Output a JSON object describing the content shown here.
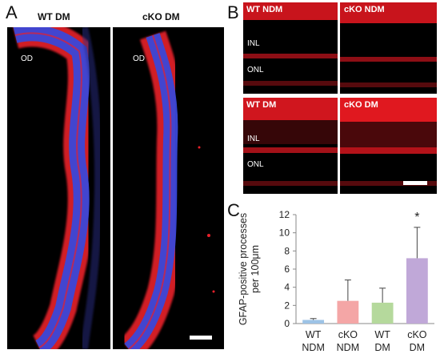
{
  "panels": {
    "a": {
      "letter": "A",
      "left_title": "WT DM",
      "right_title": "cKO DM",
      "left_od": "OD",
      "right_od": "OD"
    },
    "b": {
      "letter": "B",
      "images": [
        {
          "title": "WT NDM",
          "inl": "INL",
          "onl": "ONL"
        },
        {
          "title": "cKO NDM"
        },
        {
          "title": "WT DM",
          "inl": "INL",
          "onl": "ONL"
        },
        {
          "title": "cKO DM"
        }
      ]
    },
    "c": {
      "letter": "C"
    }
  },
  "colors": {
    "stain_red": "#e8202a",
    "stain_blue": "#3a48d8",
    "bar_wt_ndm": "#9dc3e6",
    "bar_cko_ndm": "#f4a6a6",
    "bar_wt_dm": "#b5d99c",
    "bar_cko_dm": "#c0a8d8"
  },
  "chart_data": {
    "type": "bar",
    "ylabel": "GFAP-positive processes per 100μm",
    "ylim": [
      0,
      12
    ],
    "yticks": [
      0,
      2,
      4,
      6,
      8,
      10,
      12
    ],
    "categories": [
      {
        "line1": "WT",
        "line2": "NDM"
      },
      {
        "line1": "cKO",
        "line2": "NDM"
      },
      {
        "line1": "WT",
        "line2": "DM"
      },
      {
        "line1": "cKO",
        "line2": "DM"
      }
    ],
    "values": [
      0.4,
      2.5,
      2.3,
      7.2
    ],
    "errors": [
      0.15,
      2.3,
      1.6,
      3.4
    ],
    "annotations": [
      {
        "category_index": 3,
        "text": "*"
      }
    ]
  }
}
